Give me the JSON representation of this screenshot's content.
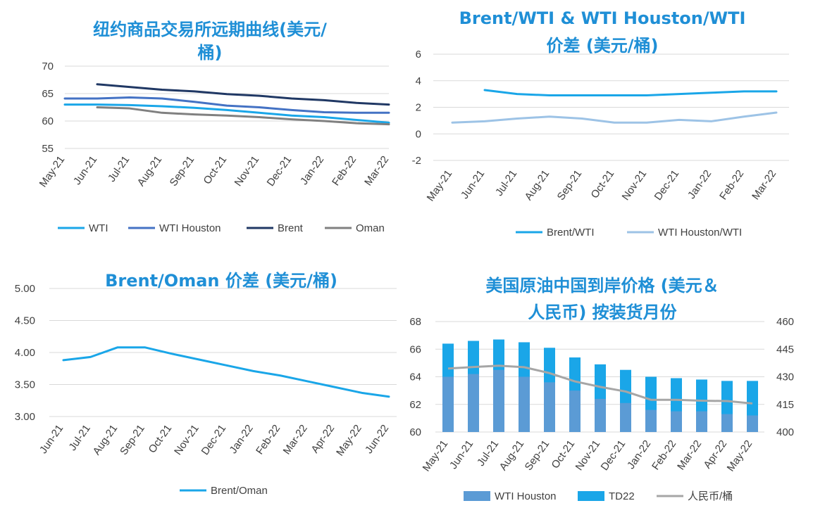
{
  "chart_data": [
    {
      "type": "line",
      "title_lines": [
        "纽约商品交易所远期曲线(美元/",
        "桶)"
      ],
      "categories": [
        "May-21",
        "Jun-21",
        "Jul-21",
        "Aug-21",
        "Sep-21",
        "Oct-21",
        "Nov-21",
        "Dec-21",
        "Jan-22",
        "Feb-22",
        "Mar-22"
      ],
      "yticks": [
        "70",
        "65",
        "60",
        "55"
      ],
      "ylim": [
        55,
        70
      ],
      "series": [
        {
          "name": "WTI",
          "color": "#1aa6e8",
          "values": [
            63.0,
            63.0,
            62.9,
            62.7,
            62.4,
            62.0,
            61.5,
            61.0,
            60.7,
            60.2,
            59.7
          ]
        },
        {
          "name": "WTI Houston",
          "color": "#4472c4",
          "values": [
            64.1,
            64.1,
            64.3,
            64.1,
            63.5,
            62.8,
            62.5,
            62.0,
            61.6,
            61.5,
            61.5
          ]
        },
        {
          "name": "Brent",
          "color": "#203864",
          "values": [
            null,
            66.7,
            66.2,
            65.7,
            65.4,
            64.9,
            64.6,
            64.1,
            63.8,
            63.3,
            63.0
          ]
        },
        {
          "name": "Oman",
          "color": "#808080",
          "values": [
            null,
            62.5,
            62.3,
            61.5,
            61.2,
            61.0,
            60.7,
            60.3,
            60.0,
            59.6,
            59.4
          ]
        }
      ]
    },
    {
      "type": "line",
      "title_lines": [
        "Brent/WTI & WTI Houston/WTI",
        "价差 (美元/桶)"
      ],
      "categories": [
        "May-21",
        "Jun-21",
        "Jul-21",
        "Aug-21",
        "Sep-21",
        "Oct-21",
        "Nov-21",
        "Dec-21",
        "Jan-22",
        "Feb-22",
        "Mar-22"
      ],
      "yticks": [
        "6",
        "4",
        "2",
        "0",
        "-2"
      ],
      "ylim": [
        -2,
        6
      ],
      "series": [
        {
          "name": "Brent/WTI",
          "color": "#1aa6e8",
          "values": [
            null,
            3.3,
            3.0,
            2.9,
            2.9,
            2.9,
            2.9,
            3.0,
            3.1,
            3.2,
            3.2
          ]
        },
        {
          "name": "WTI Houston/WTI",
          "color": "#9dc3e6",
          "values": [
            0.85,
            0.95,
            1.15,
            1.3,
            1.15,
            0.85,
            0.85,
            1.05,
            0.95,
            1.3,
            1.6
          ]
        }
      ]
    },
    {
      "type": "line",
      "title_lines": [
        "Brent/Oman 价差 (美元/桶)"
      ],
      "categories": [
        "Jun-21",
        "Jul-21",
        "Aug-21",
        "Sep-21",
        "Oct-21",
        "Nov-21",
        "Dec-21",
        "Jan-22",
        "Feb-22",
        "Mar-22",
        "Apr-22",
        "May-22",
        "Jun-22"
      ],
      "yticks": [
        "5.00",
        "4.50",
        "4.00",
        "3.50",
        "3.00"
      ],
      "ylim": [
        3.0,
        5.0
      ],
      "series": [
        {
          "name": "Brent/Oman",
          "color": "#1aa6e8",
          "values": [
            3.88,
            3.93,
            4.08,
            4.08,
            3.98,
            3.89,
            3.8,
            3.71,
            3.64,
            3.55,
            3.46,
            3.37,
            3.31
          ]
        }
      ]
    },
    {
      "type": "bar",
      "title_lines": [
        "美国原油中国到岸价格 (美元＆",
        "人民币) 按装货月份"
      ],
      "categories": [
        "May-21",
        "Jun-21",
        "Jul-21",
        "Aug-21",
        "Sep-21",
        "Oct-21",
        "Nov-21",
        "Dec-21",
        "Jan-22",
        "Feb-22",
        "Mar-22",
        "Apr-22",
        "May-22"
      ],
      "yticks": [
        "68",
        "66",
        "64",
        "62",
        "60"
      ],
      "y2ticks": [
        "460",
        "445",
        "430",
        "415",
        "400"
      ],
      "ylim": [
        60,
        68
      ],
      "y2lim": [
        400,
        460
      ],
      "series": [
        {
          "name": "WTI Houston",
          "color": "#5b9bd5",
          "values": [
            64.0,
            64.2,
            64.5,
            64.0,
            63.6,
            63.0,
            62.4,
            62.1,
            61.6,
            61.5,
            61.5,
            61.3,
            61.2
          ]
        },
        {
          "name": "TD22",
          "color": "#1aa6e8",
          "values": [
            66.4,
            66.6,
            66.7,
            66.5,
            66.1,
            65.4,
            64.9,
            64.5,
            64.0,
            63.9,
            63.8,
            63.7,
            63.7
          ]
        },
        {
          "name": "人民币/桶",
          "color": "#a6a6a6",
          "axis": "right",
          "values": [
            434.5,
            435.3,
            436.0,
            435.2,
            432.0,
            427.5,
            424.5,
            422.0,
            417.5,
            417.5,
            417.0,
            416.8,
            415.5
          ]
        }
      ]
    }
  ]
}
